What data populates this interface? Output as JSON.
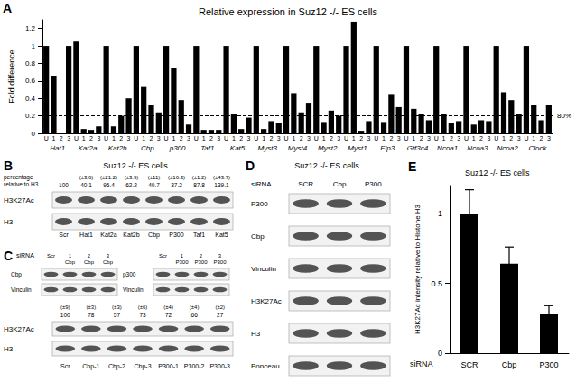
{
  "chart_data": [
    {
      "type": "bar",
      "label": "A",
      "title": "Relative expression in Suz12 -/- ES cells",
      "y_label": "Fold difference",
      "groups": [
        "Hat1",
        "Kat2a",
        "Kat2b",
        "Cbp",
        "p300",
        "Taf1",
        "Kat5",
        "Myst3",
        "Myst4",
        "Myst2",
        "Myst1",
        "Elp3",
        "Gtf3c4",
        "Ncoa1",
        "Ncoa3",
        "Ncoa2",
        "Clock"
      ],
      "categories": [
        "U",
        "1",
        "2",
        "3",
        "U",
        "1",
        "2",
        "3",
        "U",
        "1",
        "2",
        "3",
        "U",
        "1",
        "2",
        "3",
        "U",
        "1",
        "2",
        "3",
        "U",
        "1",
        "2",
        "3",
        "U",
        "1",
        "2",
        "3",
        "U",
        "1",
        "2",
        "3",
        "U",
        "1",
        "2",
        "3",
        "U",
        "1",
        "2",
        "3",
        "U",
        "1",
        "2",
        "3",
        "U",
        "1",
        "2",
        "3",
        "U",
        "1",
        "2",
        "3",
        "U",
        "1",
        "2",
        "3",
        "U",
        "1",
        "2",
        "3",
        "U",
        "1",
        "2",
        "3",
        "U",
        "1",
        "2",
        "3"
      ],
      "values": [
        1,
        0.66,
        0,
        1.0,
        1.05,
        0.05,
        0.04,
        0.08,
        1,
        0.08,
        0.2,
        0.4,
        1,
        0.53,
        0.32,
        0.24,
        1,
        0.75,
        0.38,
        0.1,
        1,
        0.04,
        0.04,
        0.04,
        1,
        0.22,
        0.05,
        0.18,
        1,
        0.05,
        0.14,
        0.12,
        1,
        0.46,
        0.24,
        0.35,
        1,
        0.13,
        0.26,
        0.2,
        1,
        1.28,
        0.03,
        0.14,
        1,
        0.13,
        0.45,
        0.3,
        1,
        0.28,
        0.22,
        0.15,
        1,
        0.22,
        0.12,
        0.14,
        1,
        0.1,
        0.15,
        0.14,
        1,
        0.47,
        0.38,
        0.22,
        1,
        0.33,
        0.15,
        0.32
      ],
      "color": "#000000",
      "ylim": [
        0,
        1.3
      ],
      "yticks": [
        0,
        0.2,
        0.4,
        0.6,
        0.8,
        1,
        1.2
      ],
      "grid": false,
      "annotations": [
        {
          "y": 0.2,
          "text": "80%",
          "line_style": "dashed"
        }
      ]
    },
    {
      "type": "bar",
      "label": "E",
      "title": "Suz12 -/- ES cells",
      "y_label": "H3K27Ac intensity relative to Histone H3",
      "x_label": "siRNA",
      "categories": [
        "SCR",
        "Cbp",
        "P300"
      ],
      "values": [
        1,
        0.64,
        0.28
      ],
      "errors": [
        0.17,
        0.12,
        0.06
      ],
      "color": "#000000",
      "ylim": [
        0,
        1.2
      ],
      "yticks": [
        0,
        0.5,
        1
      ],
      "grid": false
    }
  ],
  "blots": [
    {
      "label": "B",
      "title": "Suz12 -/- ES cells",
      "header": [
        "percentage",
        "relative to H3"
      ],
      "lanes": [
        "Scr",
        "Hat1",
        "Kat2a",
        "Kat2b",
        "Cbp",
        "P300",
        "Taf1",
        "Kat5"
      ],
      "values": [
        100,
        40.1,
        95.4,
        62.2,
        40.7,
        37.2,
        87.8,
        139.1
      ],
      "error_labels": [
        null,
        "(±3.6)",
        "(±21.2)",
        "(±3.9)",
        "(±11)",
        "(±16.3)",
        "(±1.2)",
        "(±43.7)"
      ],
      "rows": [
        "H3K27Ac",
        "H3"
      ]
    },
    {
      "label": "C",
      "siRNA_label": "siRNA",
      "blots": [
        {
          "lanes": [
            [
              "Scr"
            ],
            [
              "1",
              "Cbp"
            ],
            [
              "2",
              "Cbp"
            ],
            [
              "3",
              "Cbp"
            ]
          ],
          "rows": [
            "Cbp",
            "Vinculin"
          ]
        },
        {
          "lanes": [
            [
              "Scr"
            ],
            [
              "1",
              "P300"
            ],
            [
              "2",
              "P300"
            ],
            [
              "3",
              "P300"
            ]
          ],
          "rows": [
            "p300",
            "Vinculin"
          ]
        }
      ],
      "lanes": [
        "Scr",
        "Cbp-1",
        "Cbp-2",
        "Cbp-3",
        "P300-1",
        "P300-2",
        "P300-3"
      ],
      "values": [
        100,
        78,
        57,
        73,
        72,
        66,
        27
      ],
      "error_labels": [
        "(±9)",
        "(±3)",
        "(±3)",
        "(±6)",
        "(±4)",
        "(±4)",
        "(±2)"
      ],
      "rows": [
        "H3K27Ac",
        "H3"
      ]
    },
    {
      "label": "D",
      "title": "Suz12 -/- ES cells",
      "siRNA_label": "siRNA",
      "lanes": [
        "SCR",
        "Cbp",
        "P300"
      ],
      "rows": [
        "P300",
        "Cbp",
        "Vinculin",
        "H3K27Ac",
        "H3",
        "Ponceau"
      ]
    }
  ]
}
